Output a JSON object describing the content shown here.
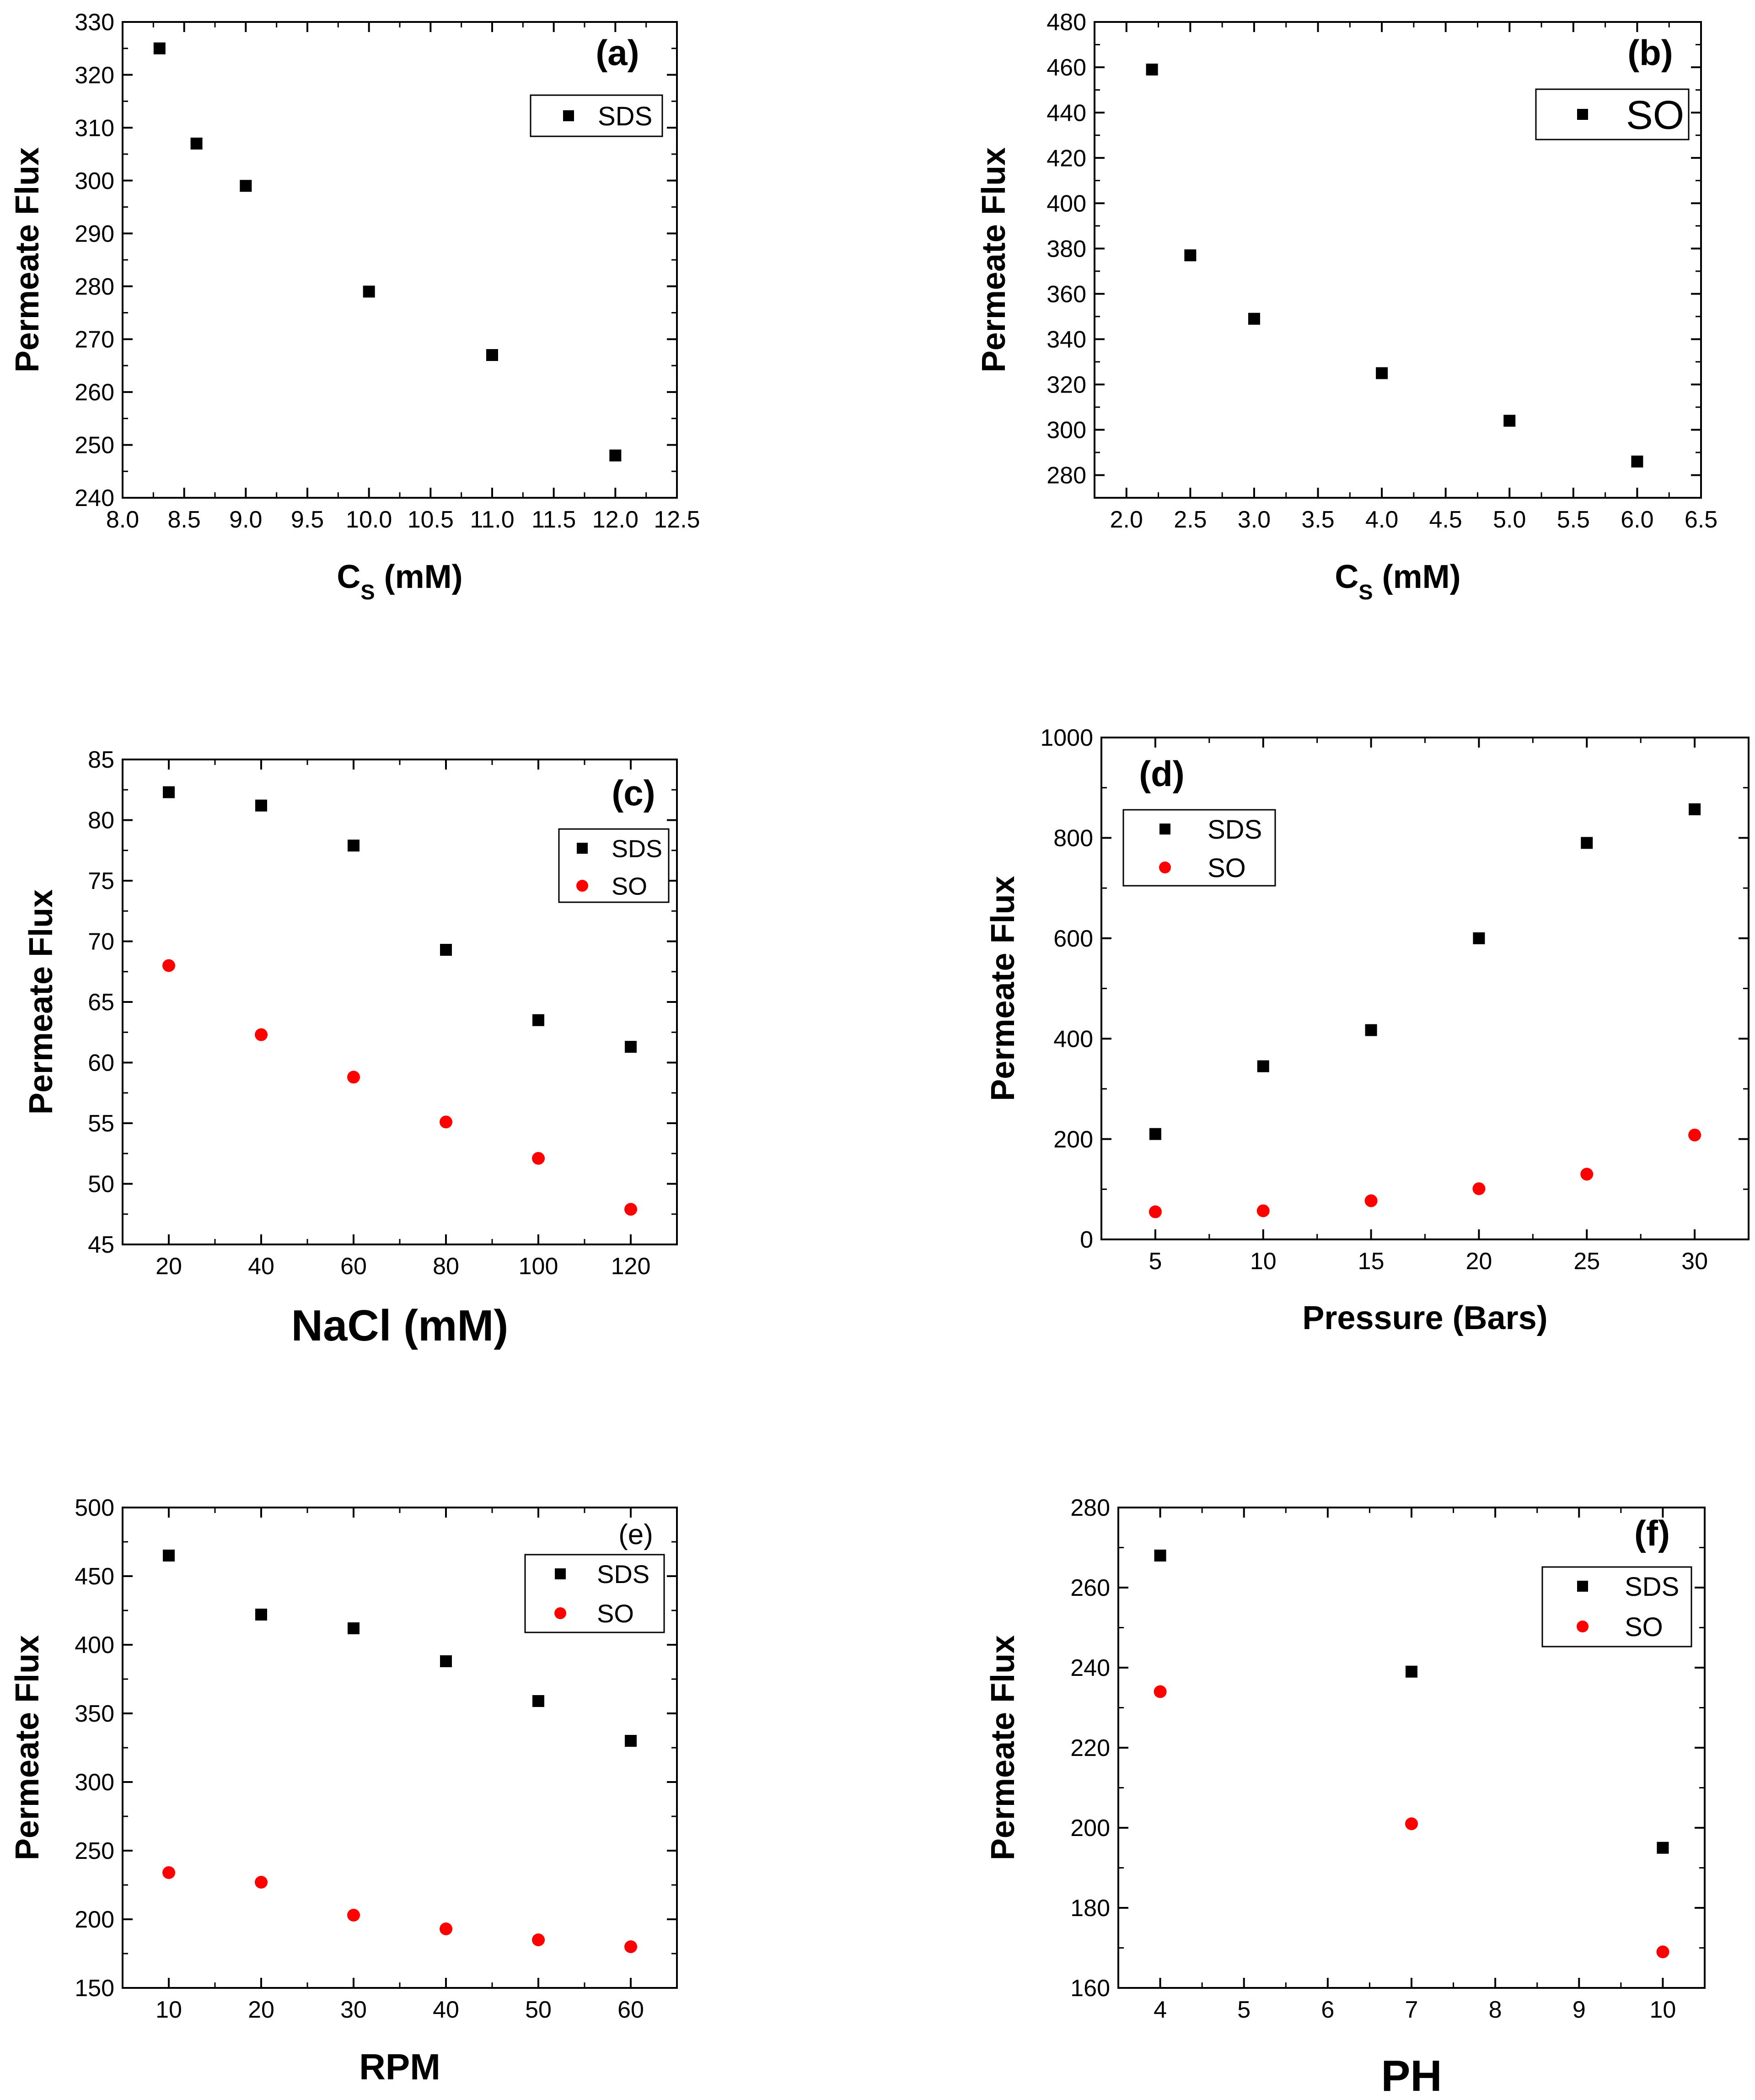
{
  "figure_title": "",
  "colors": {
    "sds": "#000000",
    "so": "#ff0000",
    "axis": "#000000"
  },
  "chart_data": [
    {
      "panel": "a",
      "type": "scatter",
      "panel_label": "(a)",
      "xlabel_main": "C",
      "xlabel_sub": "S",
      "xlabel_rest": " (mM)",
      "ylabel": "Permeate Flux",
      "xlim": [
        8.0,
        12.5
      ],
      "ylim": [
        240,
        330
      ],
      "xticks": [
        8.0,
        8.5,
        9.0,
        9.5,
        10.0,
        10.5,
        11.0,
        11.5,
        12.0,
        12.5
      ],
      "yticks": [
        240,
        250,
        260,
        270,
        280,
        290,
        300,
        310,
        320,
        330
      ],
      "x_tick_labels": [
        "8.0",
        "8.5",
        "9.0",
        "9.5",
        "10.0",
        "10.5",
        "11.0",
        "11.5",
        "12.0",
        "12.5"
      ],
      "y_tick_labels": [
        "240",
        "250",
        "260",
        "270",
        "280",
        "290",
        "300",
        "310",
        "320",
        "330"
      ],
      "legend_position": "top-right",
      "series": [
        {
          "name": "SDS",
          "marker": "square",
          "color": "#000000",
          "x": [
            8.3,
            8.6,
            9.0,
            10.0,
            11.0,
            12.0
          ],
          "y": [
            325,
            307,
            299,
            279,
            267,
            248
          ]
        }
      ]
    },
    {
      "panel": "b",
      "type": "scatter",
      "panel_label": "(b)",
      "xlabel_main": "C",
      "xlabel_sub": "S",
      "xlabel_rest": " (mM)",
      "ylabel": "Permeate Flux",
      "xlim": [
        1.75,
        6.5
      ],
      "ylim": [
        270,
        480
      ],
      "xticks": [
        2.0,
        2.5,
        3.0,
        3.5,
        4.0,
        4.5,
        5.0,
        5.5,
        6.0,
        6.5
      ],
      "yticks": [
        280,
        300,
        320,
        340,
        360,
        380,
        400,
        420,
        440,
        460,
        480
      ],
      "x_tick_labels": [
        "2.0",
        "2.5",
        "3.0",
        "3.5",
        "4.0",
        "4.5",
        "5.0",
        "5.5",
        "6.0",
        "6.5"
      ],
      "y_tick_labels": [
        "280",
        "300",
        "320",
        "340",
        "360",
        "380",
        "400",
        "420",
        "440",
        "460",
        "480"
      ],
      "legend_position": "top-right",
      "series": [
        {
          "name": "SO",
          "marker": "square",
          "color": "#000000",
          "x": [
            2.2,
            2.5,
            3.0,
            4.0,
            5.0,
            6.0
          ],
          "y": [
            459,
            377,
            349,
            325,
            304,
            286
          ]
        }
      ]
    },
    {
      "panel": "c",
      "type": "scatter",
      "panel_label": "(c)",
      "xlabel_main": "NaCl (mM)",
      "xlabel_sub": "",
      "xlabel_rest": "",
      "ylabel": "Permeate Flux",
      "xlim": [
        10,
        130
      ],
      "ylim": [
        45,
        85
      ],
      "xticks": [
        20,
        40,
        60,
        80,
        100,
        120
      ],
      "yticks": [
        45,
        50,
        55,
        60,
        65,
        70,
        75,
        80,
        85
      ],
      "x_tick_labels": [
        "20",
        "40",
        "60",
        "80",
        "100",
        "120"
      ],
      "y_tick_labels": [
        "45",
        "50",
        "55",
        "60",
        "65",
        "70",
        "75",
        "80",
        "85"
      ],
      "legend_position": "top-right",
      "series": [
        {
          "name": "SDS",
          "marker": "square",
          "color": "#000000",
          "x": [
            20,
            40,
            60,
            80,
            100,
            120
          ],
          "y": [
            82.3,
            81.2,
            77.9,
            69.3,
            63.5,
            61.3
          ]
        },
        {
          "name": "SO",
          "marker": "circle",
          "color": "#ff0000",
          "x": [
            20,
            40,
            60,
            80,
            100,
            120
          ],
          "y": [
            68.0,
            62.3,
            58.8,
            55.1,
            52.1,
            47.9
          ]
        }
      ]
    },
    {
      "panel": "d",
      "type": "scatter",
      "panel_label": "(d)",
      "xlabel_main": "Pressure (Bars)",
      "xlabel_sub": "",
      "xlabel_rest": "",
      "ylabel": "Permeate Flux",
      "xlim": [
        2.5,
        32.5
      ],
      "ylim": [
        0,
        1000
      ],
      "xticks": [
        5,
        10,
        15,
        20,
        25,
        30
      ],
      "yticks": [
        0,
        200,
        400,
        600,
        800,
        1000
      ],
      "x_tick_labels": [
        "5",
        "10",
        "15",
        "20",
        "25",
        "30"
      ],
      "y_tick_labels": [
        "0",
        "200",
        "400",
        "600",
        "800",
        "1000"
      ],
      "legend_position": "top-left",
      "series": [
        {
          "name": "SDS",
          "marker": "square",
          "color": "#000000",
          "x": [
            5,
            10,
            15,
            20,
            25,
            30
          ],
          "y": [
            210,
            345,
            417,
            600,
            790,
            857
          ]
        },
        {
          "name": "SO",
          "marker": "circle",
          "color": "#ff0000",
          "x": [
            5,
            10,
            15,
            20,
            25,
            30
          ],
          "y": [
            55,
            57,
            77,
            101,
            130,
            208
          ]
        }
      ]
    },
    {
      "panel": "e",
      "type": "scatter",
      "panel_label": "(e)",
      "xlabel_main": "RPM",
      "xlabel_sub": "",
      "xlabel_rest": "",
      "ylabel": "Permeate Flux",
      "xlim": [
        5,
        65
      ],
      "ylim": [
        150,
        500
      ],
      "xticks": [
        10,
        20,
        30,
        40,
        50,
        60
      ],
      "yticks": [
        150,
        200,
        250,
        300,
        350,
        400,
        450,
        500
      ],
      "x_tick_labels": [
        "10",
        "20",
        "30",
        "40",
        "50",
        "60"
      ],
      "y_tick_labels": [
        "150",
        "200",
        "250",
        "300",
        "350",
        "400",
        "450",
        "500"
      ],
      "legend_position": "top-right",
      "series": [
        {
          "name": "SDS",
          "marker": "square",
          "color": "#000000",
          "x": [
            10,
            20,
            30,
            40,
            50,
            60
          ],
          "y": [
            465,
            422,
            412,
            388,
            359,
            330
          ]
        },
        {
          "name": "SO",
          "marker": "circle",
          "color": "#ff0000",
          "x": [
            10,
            20,
            30,
            40,
            50,
            60
          ],
          "y": [
            234,
            227,
            203,
            193,
            185,
            180
          ]
        }
      ]
    },
    {
      "panel": "f",
      "type": "scatter",
      "panel_label": "(f)",
      "xlabel_main": "PH",
      "xlabel_sub": "",
      "xlabel_rest": "",
      "ylabel": "Permeate Flux",
      "xlim": [
        3.5,
        10.5
      ],
      "ylim": [
        160,
        280
      ],
      "xticks": [
        4,
        5,
        6,
        7,
        8,
        9,
        10
      ],
      "yticks": [
        160,
        180,
        200,
        220,
        240,
        260,
        280
      ],
      "x_tick_labels": [
        "4",
        "5",
        "6",
        "7",
        "8",
        "9",
        "10"
      ],
      "y_tick_labels": [
        "160",
        "180",
        "200",
        "220",
        "240",
        "260",
        "280"
      ],
      "legend_position": "top-right",
      "series": [
        {
          "name": "SDS",
          "marker": "square",
          "color": "#000000",
          "x": [
            4,
            7,
            10
          ],
          "y": [
            268,
            239,
            195
          ]
        },
        {
          "name": "SO",
          "marker": "circle",
          "color": "#ff0000",
          "x": [
            4,
            7,
            10
          ],
          "y": [
            234,
            201,
            169
          ]
        }
      ]
    }
  ]
}
